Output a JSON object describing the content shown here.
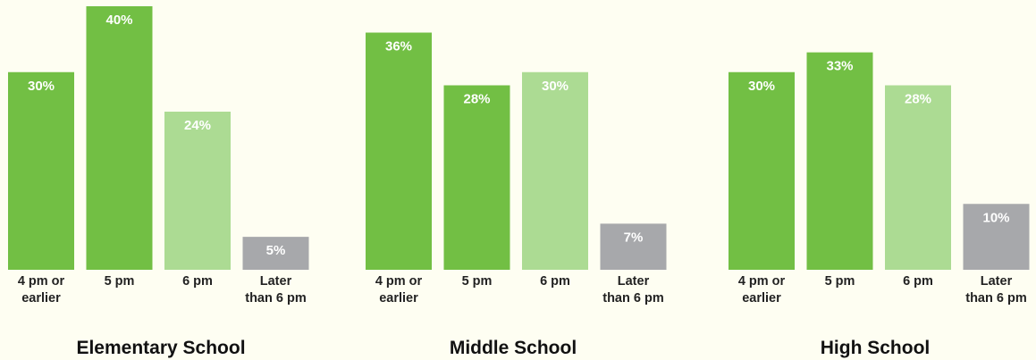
{
  "chart_data": {
    "type": "bar",
    "categories": [
      [
        "4 pm or",
        "earlier"
      ],
      [
        "5 pm"
      ],
      [
        "6 pm"
      ],
      [
        "Later",
        "than 6 pm"
      ]
    ],
    "category_colors": [
      "#72bf44",
      "#72bf44",
      "#acdb93",
      "#a7a8ab"
    ],
    "ylim": [
      0,
      40
    ],
    "groups": [
      {
        "title": "Elementary School",
        "values": [
          30,
          40,
          24,
          5
        ],
        "labels": [
          "30%",
          "40%",
          "24%",
          "5%"
        ]
      },
      {
        "title": "Middle School",
        "values": [
          36,
          28,
          30,
          7
        ],
        "labels": [
          "36%",
          "28%",
          "30%",
          "7%"
        ]
      },
      {
        "title": "High School",
        "values": [
          30,
          33,
          28,
          10
        ],
        "labels": [
          "30%",
          "33%",
          "28%",
          "10%"
        ]
      }
    ]
  }
}
